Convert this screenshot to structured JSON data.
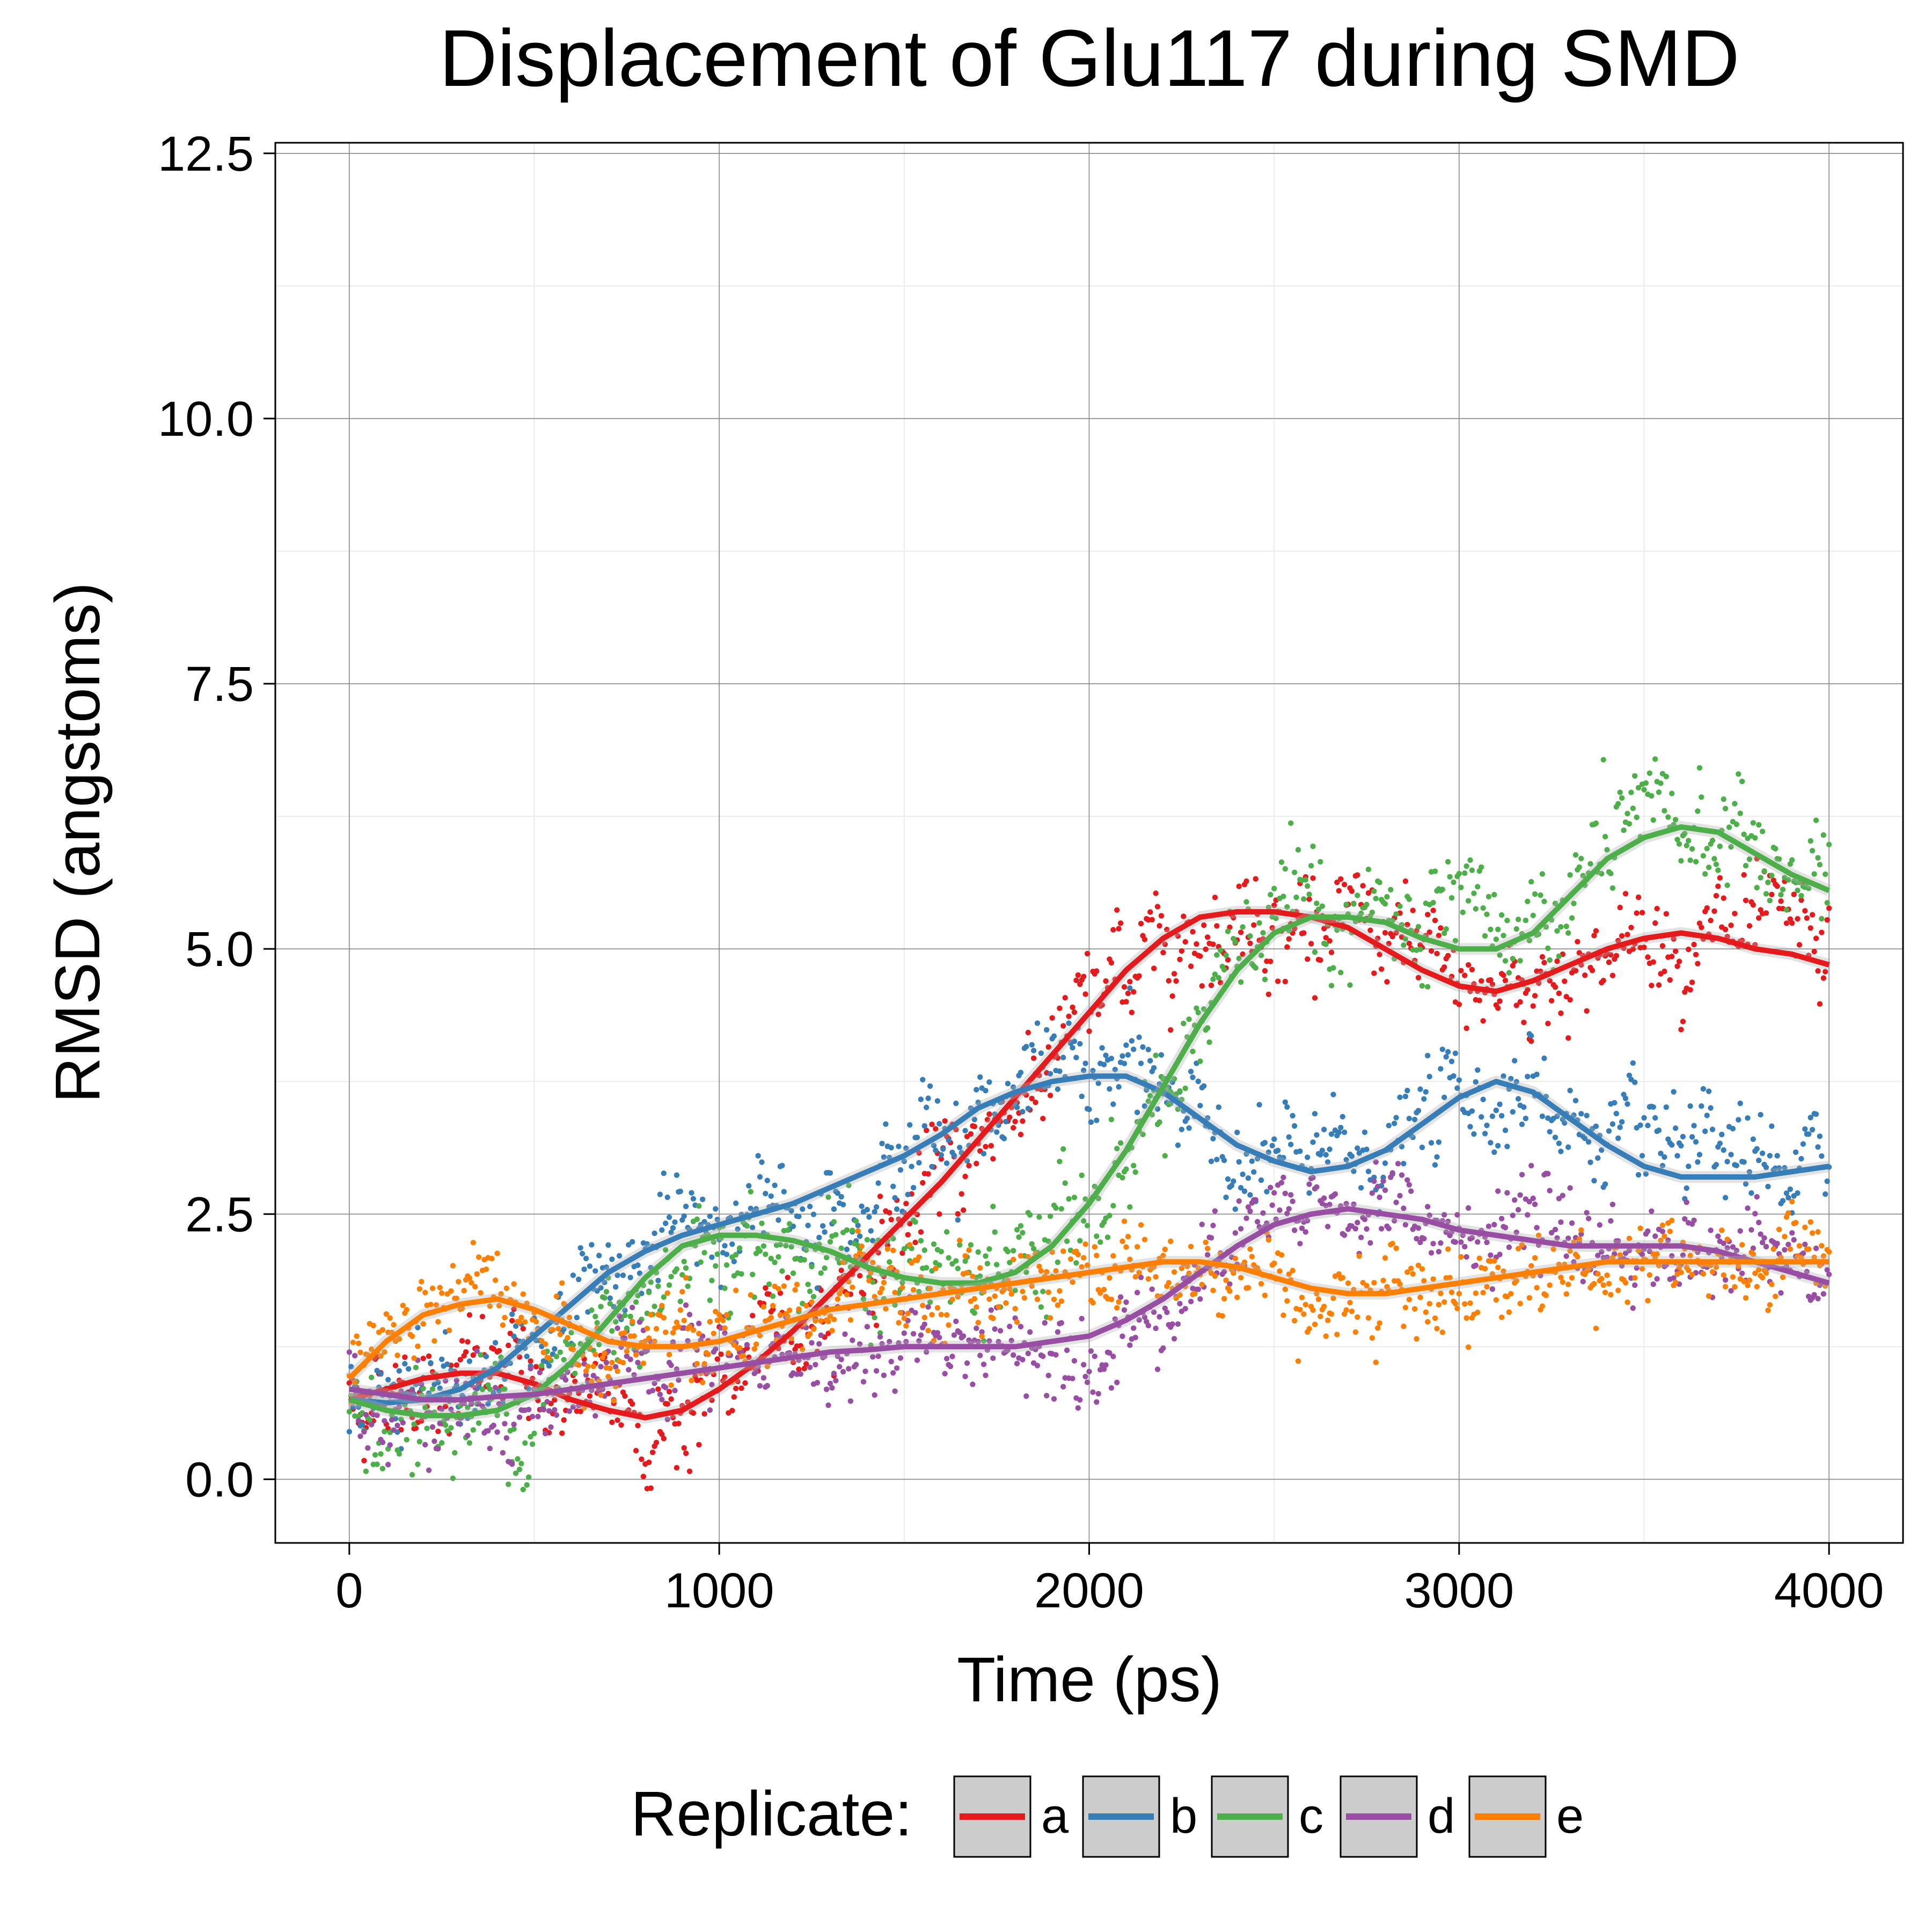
{
  "chart_data": {
    "type": "scatter",
    "title": "Displacement of Glu117 during SMD",
    "xlabel": "Time (ps)",
    "ylabel": "RMSD (angstoms)",
    "xlim": [
      -200,
      4200
    ],
    "ylim": [
      -0.6,
      12.6
    ],
    "xticks": [
      0,
      1000,
      2000,
      3000,
      4000
    ],
    "xtick_labels": [
      "0",
      "1000",
      "2000",
      "3000",
      "4000"
    ],
    "yticks": [
      0.0,
      2.5,
      5.0,
      7.5,
      10.0,
      12.5
    ],
    "ytick_labels": [
      "0.0",
      "2.5",
      "5.0",
      "7.5",
      "10.0",
      "12.5"
    ],
    "grid": true,
    "legend": {
      "title": "Replicate:",
      "position": "bottom"
    },
    "series": [
      {
        "name": "a",
        "color": "#e41a1c",
        "smooth": [
          [
            0,
            0.75
          ],
          [
            100,
            0.85
          ],
          [
            200,
            0.95
          ],
          [
            300,
            1.0
          ],
          [
            400,
            1.0
          ],
          [
            500,
            0.9
          ],
          [
            600,
            0.75
          ],
          [
            700,
            0.65
          ],
          [
            800,
            0.58
          ],
          [
            900,
            0.65
          ],
          [
            1000,
            0.85
          ],
          [
            1100,
            1.1
          ],
          [
            1200,
            1.4
          ],
          [
            1300,
            1.75
          ],
          [
            1400,
            2.1
          ],
          [
            1500,
            2.45
          ],
          [
            1600,
            2.8
          ],
          [
            1700,
            3.2
          ],
          [
            1800,
            3.6
          ],
          [
            1900,
            4.0
          ],
          [
            2000,
            4.4
          ],
          [
            2100,
            4.8
          ],
          [
            2200,
            5.1
          ],
          [
            2300,
            5.3
          ],
          [
            2400,
            5.35
          ],
          [
            2500,
            5.35
          ],
          [
            2600,
            5.3
          ],
          [
            2700,
            5.2
          ],
          [
            2800,
            5.0
          ],
          [
            2900,
            4.8
          ],
          [
            3000,
            4.65
          ],
          [
            3100,
            4.6
          ],
          [
            3200,
            4.7
          ],
          [
            3300,
            4.85
          ],
          [
            3400,
            5.0
          ],
          [
            3500,
            5.1
          ],
          [
            3600,
            5.15
          ],
          [
            3700,
            5.1
          ],
          [
            3800,
            5.0
          ],
          [
            3900,
            4.95
          ],
          [
            4000,
            4.85
          ]
        ],
        "noise": 0.35
      },
      {
        "name": "b",
        "color": "#377eb8",
        "smooth": [
          [
            0,
            0.75
          ],
          [
            100,
            0.72
          ],
          [
            200,
            0.75
          ],
          [
            300,
            0.85
          ],
          [
            400,
            1.05
          ],
          [
            500,
            1.35
          ],
          [
            600,
            1.65
          ],
          [
            700,
            1.95
          ],
          [
            800,
            2.15
          ],
          [
            900,
            2.3
          ],
          [
            1000,
            2.4
          ],
          [
            1100,
            2.5
          ],
          [
            1200,
            2.6
          ],
          [
            1300,
            2.75
          ],
          [
            1400,
            2.9
          ],
          [
            1500,
            3.05
          ],
          [
            1600,
            3.25
          ],
          [
            1700,
            3.5
          ],
          [
            1800,
            3.65
          ],
          [
            1900,
            3.75
          ],
          [
            2000,
            3.8
          ],
          [
            2100,
            3.8
          ],
          [
            2200,
            3.65
          ],
          [
            2300,
            3.4
          ],
          [
            2400,
            3.15
          ],
          [
            2500,
            3.0
          ],
          [
            2600,
            2.9
          ],
          [
            2700,
            2.95
          ],
          [
            2800,
            3.1
          ],
          [
            2900,
            3.35
          ],
          [
            3000,
            3.6
          ],
          [
            3100,
            3.75
          ],
          [
            3200,
            3.65
          ],
          [
            3300,
            3.4
          ],
          [
            3400,
            3.15
          ],
          [
            3500,
            2.95
          ],
          [
            3600,
            2.85
          ],
          [
            3700,
            2.85
          ],
          [
            3800,
            2.85
          ],
          [
            3900,
            2.9
          ],
          [
            4000,
            2.95
          ]
        ],
        "noise": 0.35
      },
      {
        "name": "c",
        "color": "#4daf4a",
        "smooth": [
          [
            0,
            0.75
          ],
          [
            100,
            0.65
          ],
          [
            200,
            0.6
          ],
          [
            300,
            0.6
          ],
          [
            400,
            0.65
          ],
          [
            500,
            0.8
          ],
          [
            600,
            1.1
          ],
          [
            700,
            1.5
          ],
          [
            800,
            1.9
          ],
          [
            900,
            2.2
          ],
          [
            1000,
            2.3
          ],
          [
            1100,
            2.3
          ],
          [
            1200,
            2.25
          ],
          [
            1300,
            2.15
          ],
          [
            1400,
            2.0
          ],
          [
            1500,
            1.9
          ],
          [
            1600,
            1.85
          ],
          [
            1700,
            1.85
          ],
          [
            1800,
            1.95
          ],
          [
            1900,
            2.2
          ],
          [
            2000,
            2.6
          ],
          [
            2100,
            3.1
          ],
          [
            2200,
            3.7
          ],
          [
            2300,
            4.3
          ],
          [
            2400,
            4.8
          ],
          [
            2500,
            5.15
          ],
          [
            2600,
            5.3
          ],
          [
            2700,
            5.3
          ],
          [
            2800,
            5.25
          ],
          [
            2900,
            5.1
          ],
          [
            3000,
            5.0
          ],
          [
            3100,
            5.0
          ],
          [
            3200,
            5.15
          ],
          [
            3300,
            5.5
          ],
          [
            3400,
            5.85
          ],
          [
            3500,
            6.05
          ],
          [
            3600,
            6.15
          ],
          [
            3700,
            6.1
          ],
          [
            3800,
            5.9
          ],
          [
            3900,
            5.7
          ],
          [
            4000,
            5.55
          ]
        ],
        "noise": 0.4
      },
      {
        "name": "d",
        "color": "#984ea3",
        "smooth": [
          [
            0,
            0.85
          ],
          [
            100,
            0.8
          ],
          [
            200,
            0.75
          ],
          [
            300,
            0.75
          ],
          [
            400,
            0.78
          ],
          [
            500,
            0.8
          ],
          [
            600,
            0.85
          ],
          [
            700,
            0.9
          ],
          [
            800,
            0.95
          ],
          [
            900,
            1.0
          ],
          [
            1000,
            1.05
          ],
          [
            1100,
            1.1
          ],
          [
            1200,
            1.15
          ],
          [
            1300,
            1.2
          ],
          [
            1400,
            1.22
          ],
          [
            1500,
            1.25
          ],
          [
            1600,
            1.25
          ],
          [
            1700,
            1.25
          ],
          [
            1800,
            1.25
          ],
          [
            1900,
            1.3
          ],
          [
            2000,
            1.35
          ],
          [
            2100,
            1.5
          ],
          [
            2200,
            1.7
          ],
          [
            2300,
            1.95
          ],
          [
            2400,
            2.2
          ],
          [
            2500,
            2.4
          ],
          [
            2600,
            2.5
          ],
          [
            2700,
            2.55
          ],
          [
            2800,
            2.5
          ],
          [
            2900,
            2.45
          ],
          [
            3000,
            2.35
          ],
          [
            3100,
            2.3
          ],
          [
            3200,
            2.25
          ],
          [
            3300,
            2.2
          ],
          [
            3400,
            2.2
          ],
          [
            3500,
            2.2
          ],
          [
            3600,
            2.2
          ],
          [
            3700,
            2.15
          ],
          [
            3800,
            2.05
          ],
          [
            3900,
            1.95
          ],
          [
            4000,
            1.85
          ]
        ],
        "noise": 0.3
      },
      {
        "name": "e",
        "color": "#ff7f00",
        "smooth": [
          [
            0,
            0.95
          ],
          [
            100,
            1.3
          ],
          [
            200,
            1.55
          ],
          [
            300,
            1.65
          ],
          [
            400,
            1.7
          ],
          [
            500,
            1.6
          ],
          [
            600,
            1.45
          ],
          [
            700,
            1.3
          ],
          [
            800,
            1.25
          ],
          [
            900,
            1.25
          ],
          [
            1000,
            1.3
          ],
          [
            1100,
            1.4
          ],
          [
            1200,
            1.5
          ],
          [
            1300,
            1.6
          ],
          [
            1400,
            1.65
          ],
          [
            1500,
            1.7
          ],
          [
            1600,
            1.75
          ],
          [
            1700,
            1.8
          ],
          [
            1800,
            1.85
          ],
          [
            1900,
            1.9
          ],
          [
            2000,
            1.95
          ],
          [
            2100,
            2.0
          ],
          [
            2200,
            2.05
          ],
          [
            2300,
            2.05
          ],
          [
            2400,
            2.0
          ],
          [
            2500,
            1.9
          ],
          [
            2600,
            1.8
          ],
          [
            2700,
            1.75
          ],
          [
            2800,
            1.75
          ],
          [
            2900,
            1.8
          ],
          [
            3000,
            1.85
          ],
          [
            3100,
            1.9
          ],
          [
            3200,
            1.95
          ],
          [
            3300,
            2.0
          ],
          [
            3400,
            2.05
          ],
          [
            3500,
            2.05
          ],
          [
            3600,
            2.05
          ],
          [
            3700,
            2.05
          ],
          [
            3800,
            2.05
          ],
          [
            3900,
            2.05
          ],
          [
            4000,
            2.05
          ]
        ],
        "noise": 0.3
      }
    ]
  }
}
